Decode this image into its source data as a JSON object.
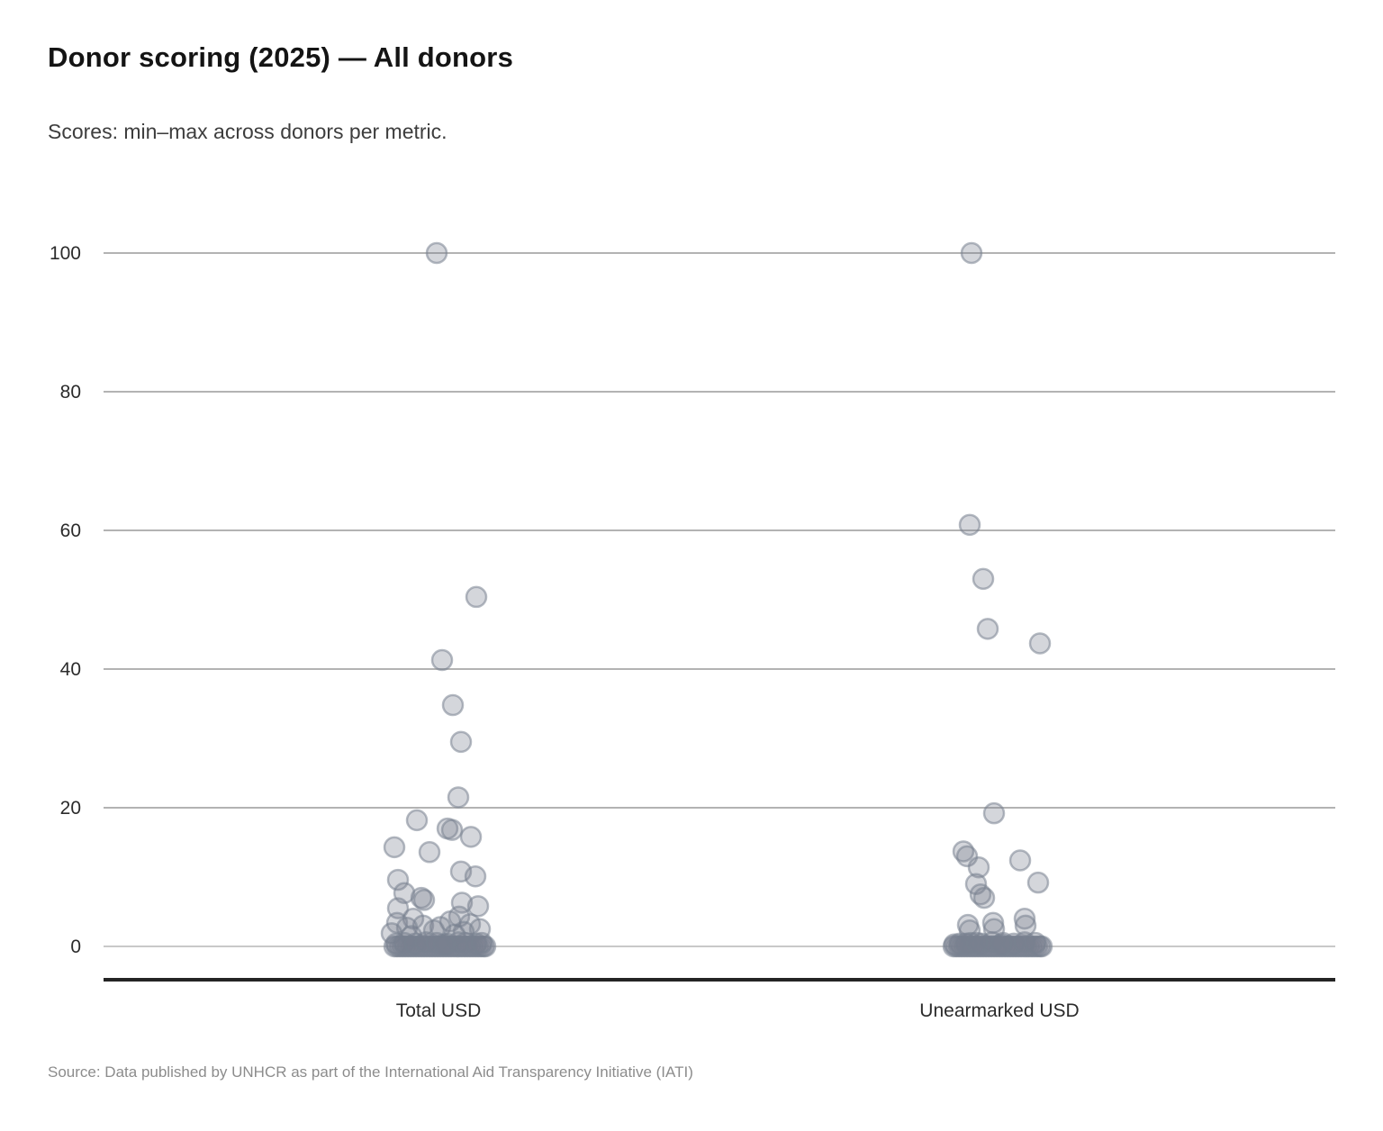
{
  "header": {
    "title": "Donor scoring (2025) — All donors",
    "subtitle": "Scores: min–max across donors per metric."
  },
  "footer": {
    "source": "Source: Data published by UNHCR as part of the International Aid Transparency Initiative (IATI)"
  },
  "chart_data": {
    "type": "scatter",
    "subtype": "strip-jitter",
    "title": "Donor scoring (2025) — All donors",
    "xlabel": "",
    "ylabel": "",
    "categories": [
      "Total USD",
      "Unearmarked USD"
    ],
    "ylim": [
      0,
      100
    ],
    "y_ticks": [
      0,
      20,
      40,
      60,
      80,
      100
    ],
    "grid": true,
    "legend": "none",
    "colors": {
      "point": "#78818f",
      "grid": "#b3b3b3",
      "grid_zero": "#c9c9c9",
      "axis": "#242424",
      "tick_text": "#2b2b2b"
    },
    "point_style": {
      "radius": 11,
      "fill_opacity": 0.32,
      "stroke_opacity": 0.55,
      "stroke_width": 2.5
    },
    "series": [
      {
        "name": "Total USD",
        "points_note": "each point = [score value, horizontal jitter offset px]",
        "points": [
          [
            100,
            -2
          ],
          [
            50.4,
            42
          ],
          [
            41.3,
            4
          ],
          [
            34.8,
            16
          ],
          [
            29.5,
            25
          ],
          [
            21.5,
            22
          ],
          [
            18.2,
            -24
          ],
          [
            17,
            10
          ],
          [
            16.8,
            15
          ],
          [
            15.8,
            36
          ],
          [
            14.3,
            -49
          ],
          [
            13.6,
            -10
          ],
          [
            10.8,
            25
          ],
          [
            10.1,
            41
          ],
          [
            9.6,
            -45
          ],
          [
            7.7,
            -38
          ],
          [
            7,
            -19
          ],
          [
            6.7,
            -16
          ],
          [
            6.3,
            26
          ],
          [
            5.8,
            44
          ],
          [
            5.5,
            -45
          ],
          [
            4.3,
            23
          ],
          [
            4,
            -28
          ],
          [
            3.6,
            13
          ],
          [
            3.4,
            -46
          ],
          [
            3.2,
            35
          ],
          [
            3,
            -17
          ],
          [
            2.8,
            2
          ],
          [
            2.7,
            -35
          ],
          [
            2.5,
            46
          ],
          [
            2.3,
            -5
          ],
          [
            2.1,
            28
          ],
          [
            1.9,
            -52
          ],
          [
            1.7,
            18
          ],
          [
            1.5,
            -30
          ],
          [
            0,
            -49
          ],
          [
            0,
            -46
          ],
          [
            0,
            -43
          ],
          [
            0,
            -40
          ],
          [
            0,
            -37
          ],
          [
            0,
            -34
          ],
          [
            0,
            -31
          ],
          [
            0,
            -28
          ],
          [
            0,
            -25
          ],
          [
            0,
            -22
          ],
          [
            0,
            -19
          ],
          [
            0,
            -16
          ],
          [
            0,
            -13
          ],
          [
            0,
            -10
          ],
          [
            0,
            -7
          ],
          [
            0,
            -4
          ],
          [
            0,
            -1
          ],
          [
            0,
            2
          ],
          [
            0,
            5
          ],
          [
            0,
            8
          ],
          [
            0,
            11
          ],
          [
            0,
            14
          ],
          [
            0,
            17
          ],
          [
            0,
            20
          ],
          [
            0,
            23
          ],
          [
            0,
            26
          ],
          [
            0,
            29
          ],
          [
            0,
            32
          ],
          [
            0,
            35
          ],
          [
            0,
            38
          ],
          [
            0,
            41
          ],
          [
            0,
            44
          ],
          [
            0,
            47
          ],
          [
            0,
            50
          ],
          [
            0,
            52
          ],
          [
            0.4,
            -47
          ],
          [
            0.5,
            -38
          ],
          [
            0.4,
            -26
          ],
          [
            0.6,
            -14
          ],
          [
            0.5,
            -2
          ],
          [
            0.4,
            10
          ],
          [
            0.6,
            22
          ],
          [
            0.5,
            30
          ],
          [
            0.4,
            42
          ],
          [
            0.5,
            48
          ],
          [
            0.3,
            6
          ]
        ]
      },
      {
        "name": "Unearmarked USD",
        "points_note": "each point = [score value, horizontal jitter offset px]",
        "points": [
          [
            100,
            -31
          ],
          [
            60.8,
            -33
          ],
          [
            53,
            -18
          ],
          [
            45.8,
            -13
          ],
          [
            43.7,
            45
          ],
          [
            19.2,
            -6
          ],
          [
            13.7,
            -40
          ],
          [
            13,
            -36
          ],
          [
            12.4,
            23
          ],
          [
            11.4,
            -23
          ],
          [
            9.2,
            43
          ],
          [
            9,
            -26
          ],
          [
            7.5,
            -21
          ],
          [
            7,
            -17
          ],
          [
            4,
            28
          ],
          [
            3.4,
            -7
          ],
          [
            3.1,
            -35
          ],
          [
            3,
            29
          ],
          [
            2.5,
            -6
          ],
          [
            2.3,
            -33
          ],
          [
            0,
            -51
          ],
          [
            0,
            -48
          ],
          [
            0,
            -45
          ],
          [
            0,
            -42
          ],
          [
            0,
            -39
          ],
          [
            0,
            -36
          ],
          [
            0,
            -33
          ],
          [
            0,
            -30
          ],
          [
            0,
            -27
          ],
          [
            0,
            -24
          ],
          [
            0,
            -21
          ],
          [
            0,
            -18
          ],
          [
            0,
            -15
          ],
          [
            0,
            -12
          ],
          [
            0,
            -9
          ],
          [
            0,
            -6
          ],
          [
            0,
            -3
          ],
          [
            0,
            0
          ],
          [
            0,
            3
          ],
          [
            0,
            6
          ],
          [
            0,
            9
          ],
          [
            0,
            12
          ],
          [
            0,
            15
          ],
          [
            0,
            18
          ],
          [
            0,
            21
          ],
          [
            0,
            24
          ],
          [
            0,
            27
          ],
          [
            0,
            30
          ],
          [
            0,
            33
          ],
          [
            0,
            36
          ],
          [
            0,
            39
          ],
          [
            0,
            42
          ],
          [
            0,
            45
          ],
          [
            0,
            47
          ],
          [
            0.4,
            -44
          ],
          [
            0.5,
            -32
          ],
          [
            0.4,
            -20
          ],
          [
            0.6,
            -8
          ],
          [
            0.5,
            4
          ],
          [
            0.4,
            16
          ],
          [
            0.6,
            28
          ],
          [
            0.5,
            40
          ],
          [
            0.3,
            -50
          ],
          [
            0.4,
            -37
          ],
          [
            0.5,
            -25
          ],
          [
            0.3,
            2
          ]
        ]
      }
    ]
  }
}
